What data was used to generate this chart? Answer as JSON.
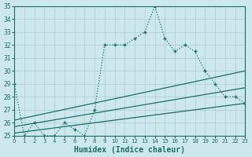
{
  "title": "",
  "xlabel": "Humidex (Indice chaleur)",
  "ylabel": "",
  "bg_color": "#cce8ec",
  "grid_color": "#aacccc",
  "line_color": "#1a6e6a",
  "ylim": [
    25,
    35
  ],
  "xlim": [
    0,
    23
  ],
  "yticks": [
    25,
    26,
    27,
    28,
    29,
    30,
    31,
    32,
    33,
    34,
    35
  ],
  "xticks": [
    0,
    1,
    2,
    3,
    4,
    5,
    6,
    7,
    8,
    9,
    10,
    11,
    12,
    13,
    14,
    15,
    16,
    17,
    18,
    19,
    20,
    21,
    22,
    23
  ],
  "main_series_x": [
    0,
    1,
    2,
    3,
    4,
    5,
    6,
    7,
    8,
    9,
    10,
    11,
    12,
    13,
    14,
    15,
    16,
    17,
    18,
    19,
    20,
    21,
    22,
    23
  ],
  "main_series_y": [
    29,
    25,
    26,
    25,
    25,
    26,
    25.5,
    25,
    27,
    32,
    32,
    32,
    32.5,
    33,
    35,
    32.5,
    31.5,
    32,
    31.5,
    30,
    29,
    28,
    28,
    27.5
  ],
  "trend1_x": [
    0,
    23
  ],
  "trend1_y": [
    26.2,
    30.0
  ],
  "trend2_x": [
    0,
    23
  ],
  "trend2_y": [
    25.7,
    28.7
  ],
  "trend3_x": [
    0,
    23
  ],
  "trend3_y": [
    25.2,
    27.5
  ]
}
